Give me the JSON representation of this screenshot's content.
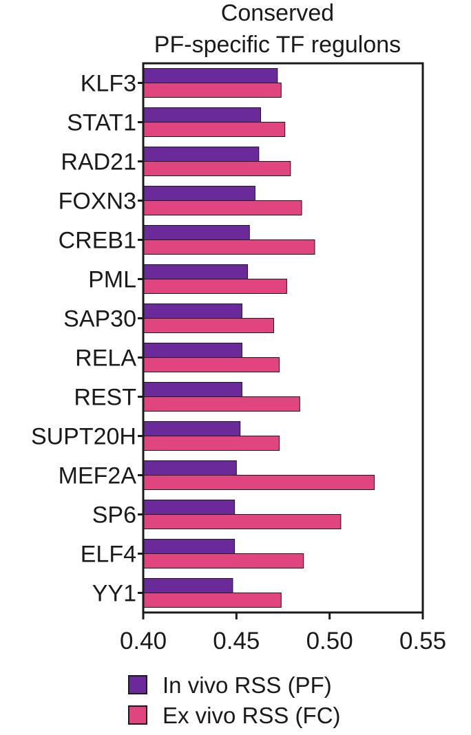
{
  "chart_data": {
    "type": "bar",
    "orientation": "horizontal",
    "title_lines": [
      "Conserved",
      "PF-specific TF regulons"
    ],
    "xlabel": "",
    "ylabel": "",
    "xlim": [
      0.4,
      0.55
    ],
    "xticks": [
      "0.40",
      "0.45",
      "0.50",
      "0.55"
    ],
    "xtick_values": [
      0.4,
      0.45,
      0.5,
      0.55
    ],
    "grid": false,
    "legend_position": "bottom",
    "categories": [
      "KLF3",
      "STAT1",
      "RAD21",
      "FOXN3",
      "CREB1",
      "PML",
      "SAP30",
      "RELA",
      "REST",
      "SUPT20H",
      "MEF2A",
      "SP6",
      "ELF4",
      "YY1"
    ],
    "series": [
      {
        "name": "In vivo RSS (PF)",
        "color": "#6a2a9a",
        "values": [
          0.472,
          0.463,
          0.462,
          0.46,
          0.457,
          0.456,
          0.453,
          0.453,
          0.453,
          0.452,
          0.45,
          0.449,
          0.449,
          0.448
        ]
      },
      {
        "name": "Ex vivo RSS (FC)",
        "color": "#e0457f",
        "values": [
          0.474,
          0.476,
          0.479,
          0.485,
          0.492,
          0.477,
          0.47,
          0.473,
          0.484,
          0.473,
          0.524,
          0.506,
          0.486,
          0.474
        ]
      }
    ]
  }
}
